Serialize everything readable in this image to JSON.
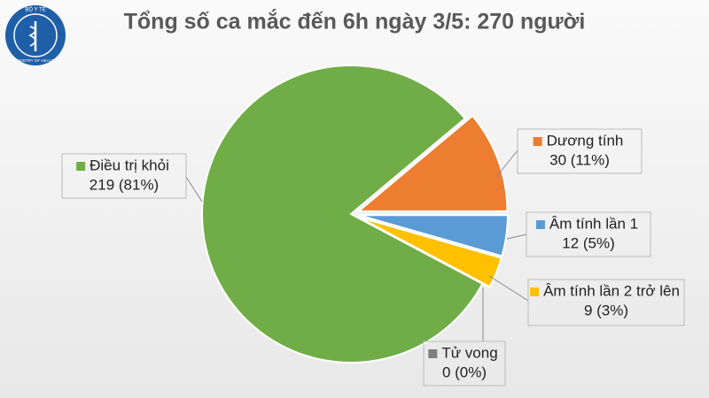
{
  "logo": {
    "top": "BỘ Y TẾ",
    "bottom": "MINISTRY OF HEALTH"
  },
  "chart_data": {
    "type": "pie",
    "title": "Tổng số ca mắc đến 6h ngày 3/5: 270 người",
    "categories": [
      "Điều trị khỏi",
      "Dương tính",
      "Âm tính lần 1",
      "Âm tính lần 2 trở lên",
      "Tử vong"
    ],
    "values": [
      219,
      30,
      12,
      9,
      0
    ],
    "value_labels": [
      "219 (81%)",
      "30 (11%)",
      "12 (5%)",
      "9 (3%)",
      "0 (0%)"
    ],
    "colors": [
      "#70ad47",
      "#ed7d31",
      "#5b9bd5",
      "#ffc000",
      "#7f7f7f"
    ]
  }
}
